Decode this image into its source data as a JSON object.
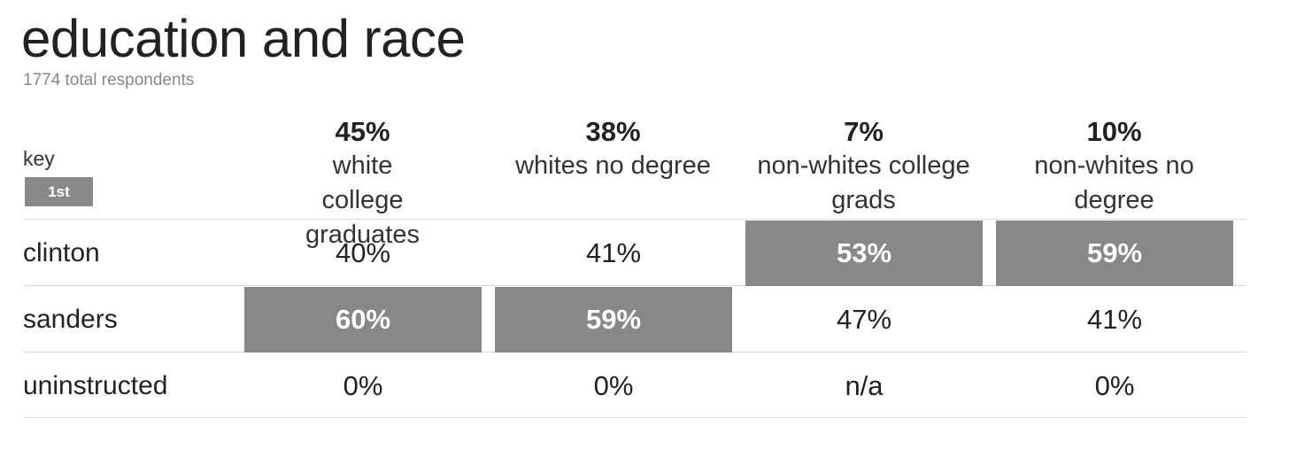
{
  "chart_data": {
    "type": "table",
    "title": "education and race",
    "subtitle": "1774 total respondents",
    "key": {
      "label": "key",
      "swatch_text": "1st",
      "swatch_color": "#888888"
    },
    "columns": [
      {
        "share": "45%",
        "name": "white college graduates"
      },
      {
        "share": "38%",
        "name": "whites no degree"
      },
      {
        "share": "7%",
        "name": "non-whites college grads"
      },
      {
        "share": "10%",
        "name": "non-whites no degree"
      }
    ],
    "rows": [
      {
        "label": "clinton",
        "values": [
          "40%",
          "41%",
          "53%",
          "59%"
        ],
        "first": [
          false,
          false,
          true,
          true
        ]
      },
      {
        "label": "sanders",
        "values": [
          "60%",
          "59%",
          "47%",
          "41%"
        ],
        "first": [
          true,
          true,
          false,
          false
        ]
      },
      {
        "label": "uninstructed",
        "values": [
          "0%",
          "0%",
          "n/a",
          "0%"
        ],
        "first": [
          false,
          false,
          false,
          false
        ]
      }
    ],
    "highlight_color": "#888888"
  }
}
